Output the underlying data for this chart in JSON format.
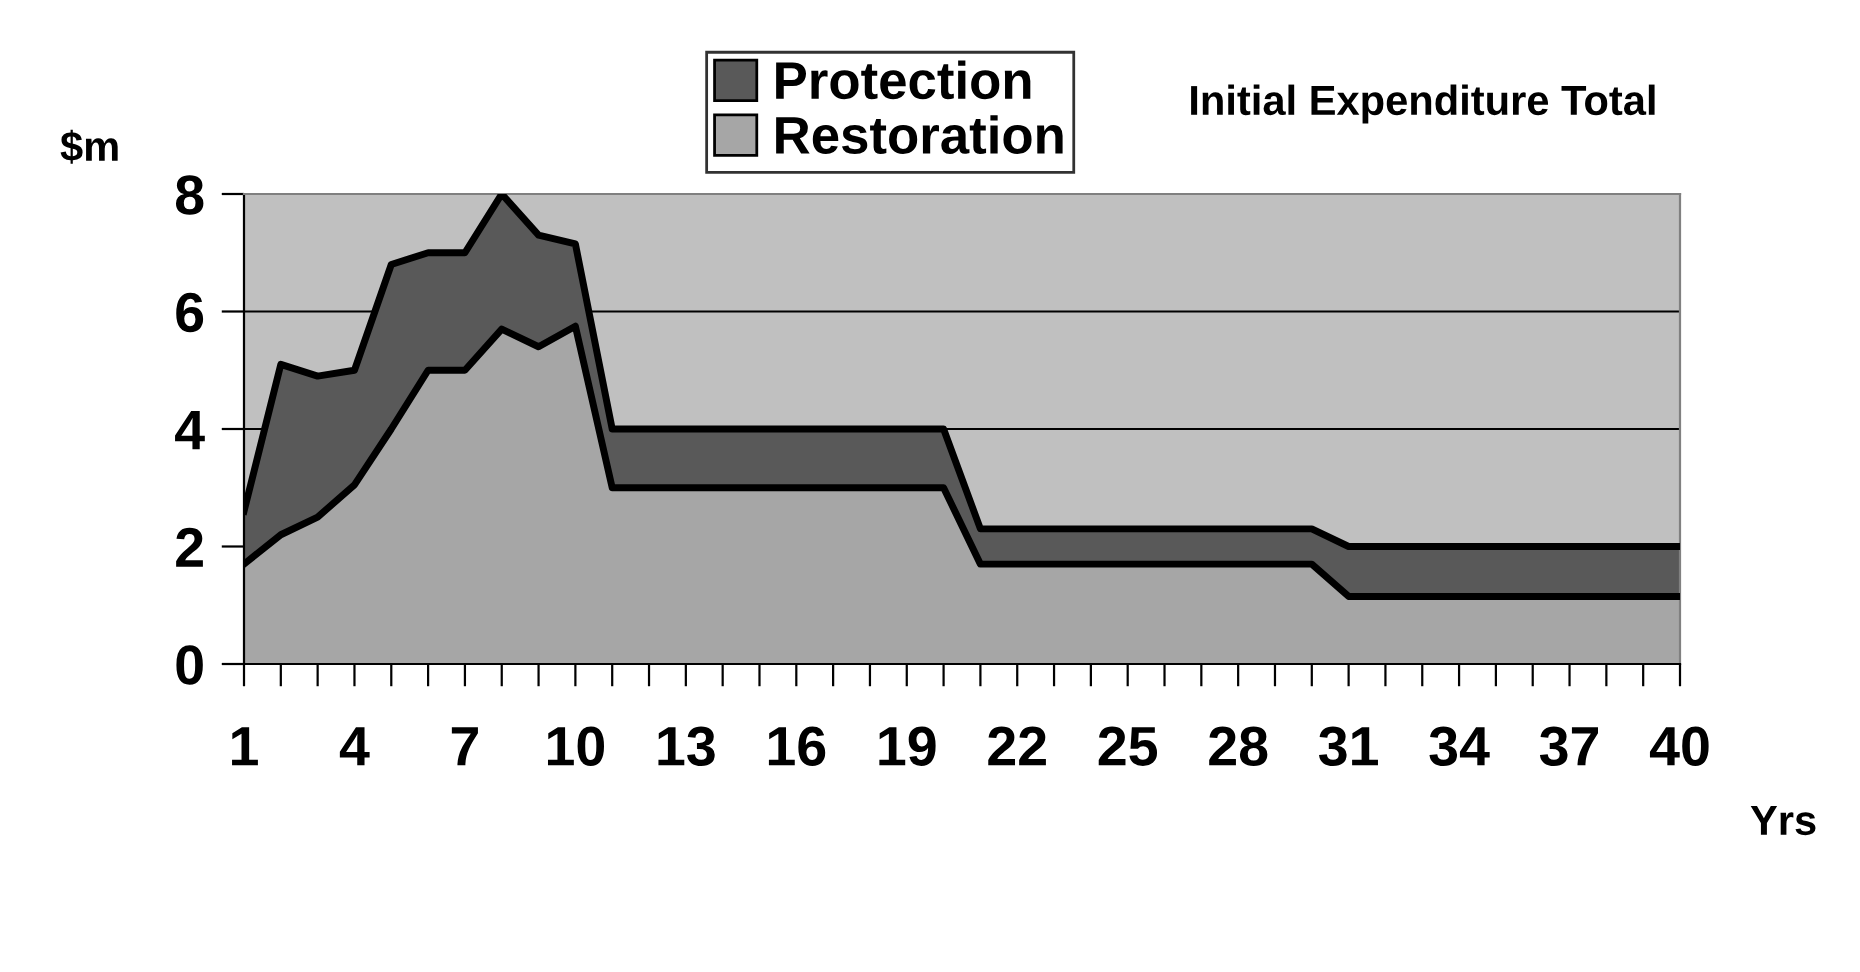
{
  "chart_data": {
    "type": "area",
    "stacked": true,
    "title": "Initial Expenditure Total",
    "ylabel": "$m",
    "xlabel": "Yrs",
    "categories": [
      "1",
      null,
      null,
      "4",
      null,
      null,
      "7",
      null,
      null,
      "10",
      null,
      null,
      "13",
      null,
      null,
      "16",
      null,
      null,
      "19",
      null,
      null,
      "22",
      null,
      null,
      "25",
      null,
      null,
      "28",
      null,
      null,
      "31",
      null,
      null,
      "34",
      null,
      null,
      "37",
      null,
      null,
      "40"
    ],
    "series": [
      {
        "name": "Restoration",
        "color": "#a6a6a6",
        "values": [
          1.7,
          2.2,
          2.5,
          3.05,
          4.0,
          5.0,
          5.0,
          5.7,
          5.4,
          5.75,
          3.0,
          3.0,
          3.0,
          3.0,
          3.0,
          3.0,
          3.0,
          3.0,
          3.0,
          3.0,
          1.7,
          1.7,
          1.7,
          1.7,
          1.7,
          1.7,
          1.7,
          1.7,
          1.7,
          1.7,
          1.15,
          1.15,
          1.15,
          1.15,
          1.15,
          1.15,
          1.15,
          1.15,
          1.15,
          1.15
        ]
      },
      {
        "name": "Protection",
        "color": "#595959",
        "values": [
          0.9,
          2.9,
          2.4,
          1.95,
          2.8,
          2.0,
          2.0,
          2.3,
          1.9,
          1.4,
          1.0,
          1.0,
          1.0,
          1.0,
          1.0,
          1.0,
          1.0,
          1.0,
          1.0,
          1.0,
          0.6,
          0.6,
          0.6,
          0.6,
          0.6,
          0.6,
          0.6,
          0.6,
          0.6,
          0.6,
          0.85,
          0.85,
          0.85,
          0.85,
          0.85,
          0.85,
          0.85,
          0.85,
          0.85,
          0.85
        ]
      }
    ],
    "ylim": [
      0,
      8
    ],
    "yticks": [
      0,
      2,
      4,
      6,
      8
    ],
    "grid": "y",
    "legend": "top"
  }
}
